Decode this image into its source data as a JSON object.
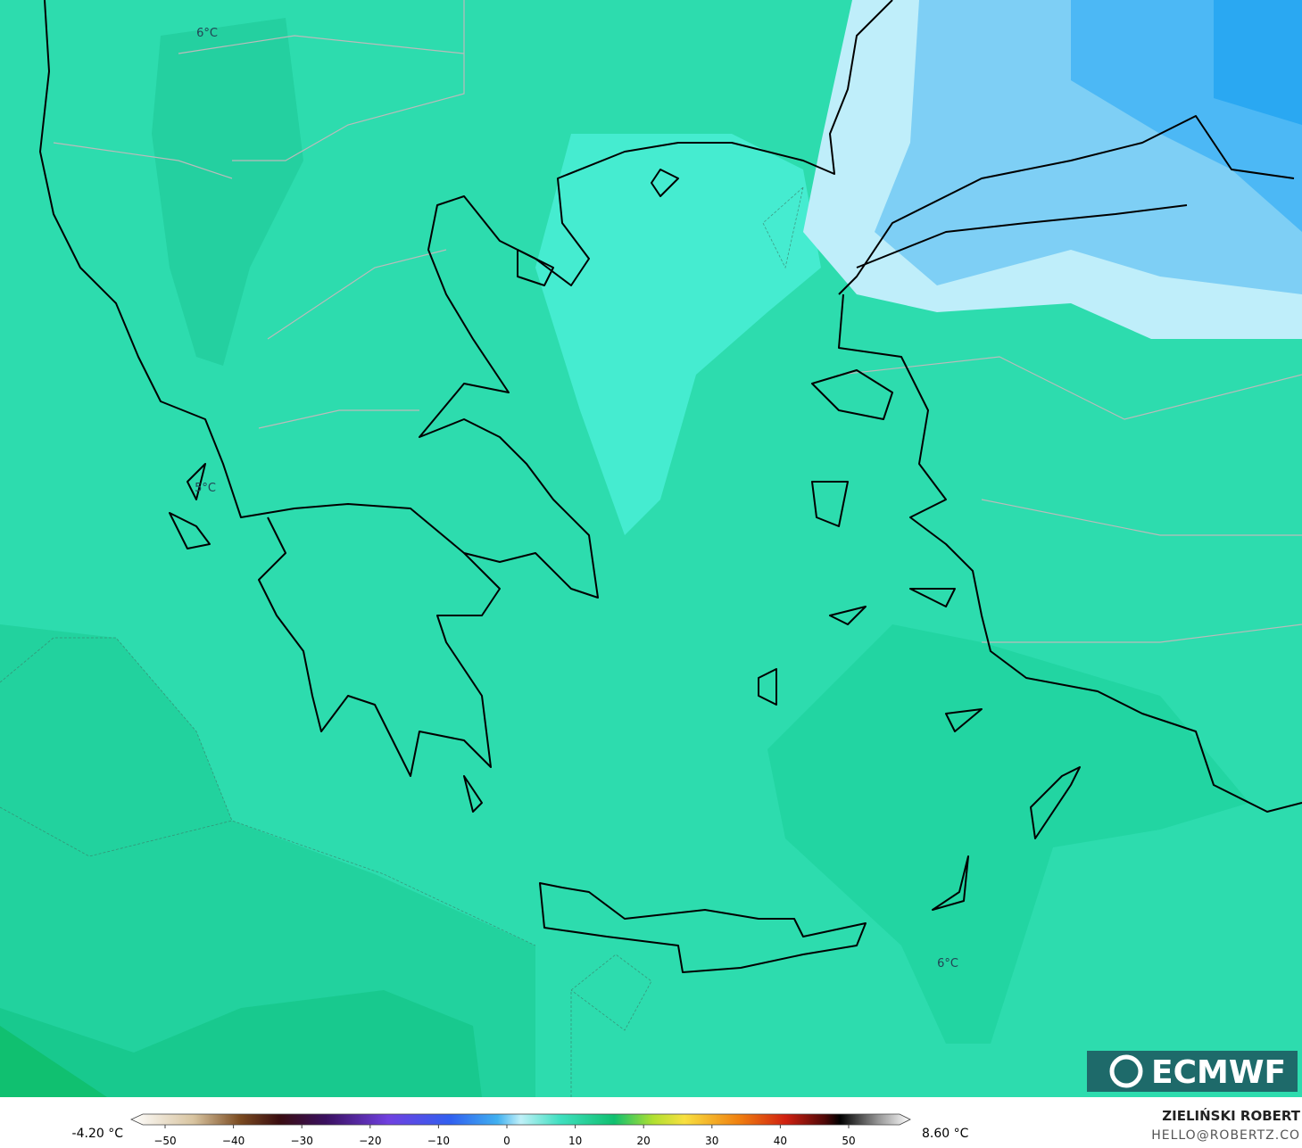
{
  "map": {
    "contour_labels": [
      "6°C",
      "5°C",
      "6°C"
    ],
    "branding": "ECMWF",
    "author": "ZIELIŃSKI ROBERT",
    "contact": "HELLO@ROBERTZ.CO"
  },
  "colorbar": {
    "min_label": "-4.20 °C",
    "max_label": "8.60 °C",
    "ticks": [
      {
        "value": -50,
        "label": "−50"
      },
      {
        "value": -40,
        "label": "−40"
      },
      {
        "value": -30,
        "label": "−30"
      },
      {
        "value": -20,
        "label": "−20"
      },
      {
        "value": -10,
        "label": "−10"
      },
      0,
      10,
      20,
      30,
      40,
      50
    ]
  }
}
